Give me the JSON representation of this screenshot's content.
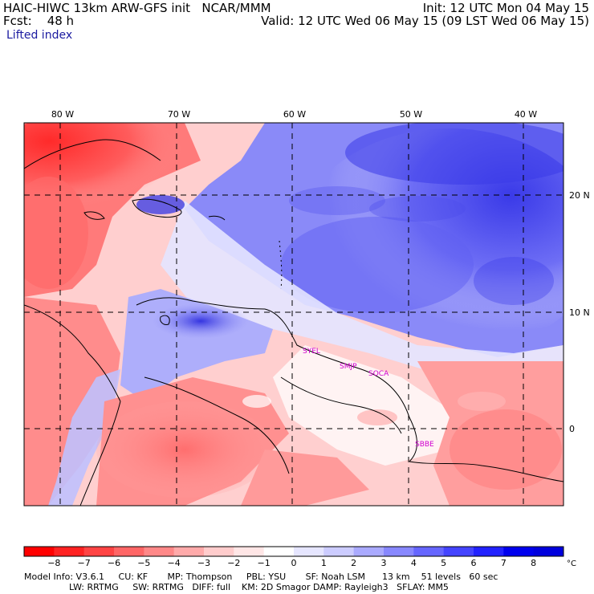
{
  "header": {
    "model_line": "HAIC-HIWC 13km ARW-GFS init   NCAR/MMM",
    "fcst_line": "Fcst:    48 h",
    "variable": "Lifted index",
    "init_line": "Init: 12 UTC Mon 04 May 15",
    "valid_line": "Valid: 12 UTC Wed 06 May 15 (09 LST Wed 06 May 15)"
  },
  "map": {
    "lon_labels": [
      "80 W",
      "70 W",
      "60 W",
      "50 W",
      "40 W"
    ],
    "lat_labels": [
      "20 N",
      "10 N",
      "0"
    ],
    "stations": [
      "SYEL",
      "SMJP",
      "SOCA",
      "SBBE"
    ],
    "colors": {
      "land_contour": "#000000",
      "grid": "#000000",
      "station_label": "#d000d0"
    }
  },
  "colorbar": {
    "labels": [
      "−8",
      "−7",
      "−6",
      "−5",
      "−4",
      "−3",
      "−2",
      "−1",
      "0",
      "1",
      "2",
      "3",
      "4",
      "5",
      "6",
      "7",
      "8"
    ],
    "unit": "°C",
    "colors": [
      "#ff0000",
      "#ff2222",
      "#ff4444",
      "#ff6666",
      "#ff8888",
      "#ffaaaa",
      "#ffcccc",
      "#ffe6e6",
      "#ffffff",
      "#e6e6ff",
      "#ccccff",
      "#aaaaff",
      "#8888ff",
      "#6666ff",
      "#4444ff",
      "#2222ff",
      "#0000ee",
      "#0000dd"
    ]
  },
  "footer": {
    "line1": "Model Info: V3.6.1     CU: KF       MP: Thompson     PBL: YSU       SF: Noah LSM      13 km    51 levels   60 sec",
    "line2": "                LW: RRTMG     SW: RRTMG   DIFF: full    KM: 2D Smagor DAMP: Rayleigh3   SFLAY: MM5"
  }
}
